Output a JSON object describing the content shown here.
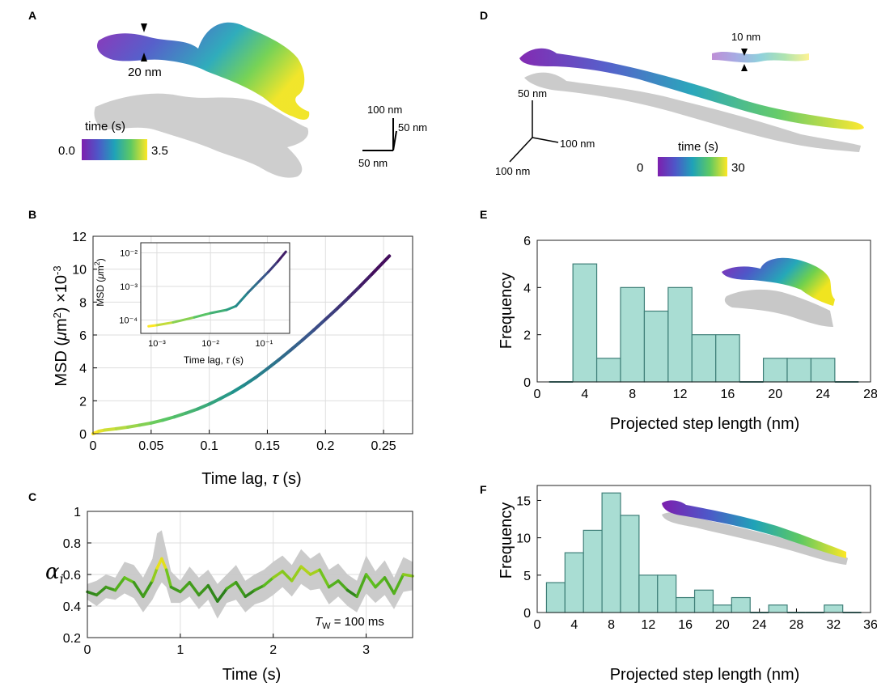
{
  "panel_labels": [
    "A",
    "B",
    "C",
    "D",
    "E",
    "F"
  ],
  "panel_a": {
    "scale_label": "20 nm",
    "colorbar": {
      "title": "time (s)",
      "min_label": "0.0",
      "max_label": "3.5"
    },
    "axes_labels": {
      "vertical": "100 nm",
      "depth": "50 nm",
      "horizontal": "50 nm"
    }
  },
  "panel_d": {
    "scale_label": "10 nm",
    "colorbar": {
      "title": "time (s)",
      "min_label": "0",
      "max_label": "30"
    },
    "axes_labels": {
      "vertical": "50 nm",
      "right": "100 nm",
      "down": "100 nm"
    }
  },
  "colors": {
    "hist_fill": "#a9ddd3",
    "hist_edge": "#3f7f78",
    "trace_gray": "#c8c8c8",
    "alpha_bright": "#f2e21a",
    "alpha_mid": "#8fd01f",
    "alpha_dark": "#1a6b1a",
    "viridis": [
      "#440154",
      "#3b528b",
      "#21918c",
      "#5ec962",
      "#fde725"
    ]
  },
  "chart_data": [
    {
      "id": "B",
      "type": "line",
      "title": "",
      "xlabel": "Time lag, τ (s)",
      "ylabel": "MSD (μm²) ×10⁻³",
      "xlim": [
        0,
        0.275
      ],
      "ylim": [
        0,
        12
      ],
      "grid": true,
      "xticks": [
        0,
        0.05,
        0.1,
        0.15,
        0.2,
        0.25
      ],
      "xtick_labels": [
        "0",
        "0.05",
        "0.1",
        "0.15",
        "0.2",
        "0.25"
      ],
      "yticks": [
        0,
        2,
        4,
        6,
        8,
        10,
        12
      ],
      "ytick_labels": [
        "0",
        "2",
        "4",
        "6",
        "8",
        "10",
        "12"
      ],
      "x": [
        0,
        0.005,
        0.01,
        0.02,
        0.03,
        0.04,
        0.05,
        0.06,
        0.07,
        0.08,
        0.09,
        0.1,
        0.11,
        0.12,
        0.13,
        0.14,
        0.15,
        0.16,
        0.17,
        0.18,
        0.19,
        0.2,
        0.21,
        0.22,
        0.23,
        0.24,
        0.255
      ],
      "y": [
        0,
        0.15,
        0.22,
        0.3,
        0.4,
        0.52,
        0.65,
        0.82,
        1.02,
        1.25,
        1.5,
        1.8,
        2.15,
        2.52,
        2.95,
        3.42,
        3.95,
        4.5,
        5.08,
        5.68,
        6.3,
        6.95,
        7.6,
        8.28,
        8.98,
        9.7,
        10.8
      ]
    },
    {
      "id": "B-inset",
      "type": "line",
      "scale": "loglog",
      "xlabel": "Time lag, τ (s)",
      "ylabel": "MSD (μm²)",
      "xlim": [
        0.0005,
        0.3
      ],
      "ylim": [
        4e-05,
        0.02
      ],
      "xticks": [
        0.001,
        0.01,
        0.1
      ],
      "xtick_labels": [
        "10⁻³",
        "10⁻²",
        "10⁻¹"
      ],
      "yticks": [
        0.0001,
        0.001,
        0.01
      ],
      "ytick_labels": [
        "10⁻⁴",
        "10⁻³",
        "10⁻²"
      ],
      "x": [
        0.0007,
        0.001,
        0.002,
        0.005,
        0.01,
        0.02,
        0.03,
        0.05,
        0.08,
        0.12,
        0.18,
        0.255
      ],
      "y": [
        6.5e-05,
        7e-05,
        8.5e-05,
        0.00012,
        0.00016,
        0.0002,
        0.00026,
        0.00065,
        0.0014,
        0.0027,
        0.0055,
        0.0108
      ]
    },
    {
      "id": "C",
      "type": "line",
      "xlabel": "Time (s)",
      "ylabel": "αᵢ",
      "xlim": [
        0,
        3.5
      ],
      "ylim": [
        0.2,
        1
      ],
      "grid": true,
      "xticks": [
        0,
        1,
        2,
        3
      ],
      "xtick_labels": [
        "0",
        "1",
        "2",
        "3"
      ],
      "yticks": [
        0.2,
        0.4,
        0.6,
        0.8,
        1
      ],
      "ytick_labels": [
        "0.2",
        "0.4",
        "0.6",
        "0.8",
        "1"
      ],
      "annotation": "T_W = 100 ms",
      "annotation_main": "T",
      "annotation_sub": "W",
      "annotation_rest": " = 100 ms",
      "x": [
        0,
        0.1,
        0.2,
        0.3,
        0.4,
        0.5,
        0.6,
        0.7,
        0.75,
        0.8,
        0.85,
        0.9,
        1.0,
        1.1,
        1.2,
        1.3,
        1.4,
        1.5,
        1.6,
        1.7,
        1.8,
        1.9,
        2.0,
        2.1,
        2.2,
        2.3,
        2.4,
        2.5,
        2.6,
        2.7,
        2.8,
        2.9,
        3.0,
        3.1,
        3.2,
        3.3,
        3.4,
        3.5
      ],
      "y": [
        0.49,
        0.47,
        0.52,
        0.5,
        0.58,
        0.55,
        0.46,
        0.56,
        0.64,
        0.7,
        0.63,
        0.52,
        0.49,
        0.55,
        0.47,
        0.53,
        0.43,
        0.51,
        0.55,
        0.46,
        0.5,
        0.53,
        0.58,
        0.62,
        0.56,
        0.65,
        0.6,
        0.63,
        0.52,
        0.56,
        0.5,
        0.46,
        0.6,
        0.52,
        0.58,
        0.48,
        0.6,
        0.59
      ],
      "band_lower": [
        0.44,
        0.4,
        0.45,
        0.44,
        0.48,
        0.45,
        0.36,
        0.44,
        0.5,
        0.55,
        0.52,
        0.42,
        0.42,
        0.46,
        0.38,
        0.44,
        0.32,
        0.42,
        0.44,
        0.36,
        0.41,
        0.43,
        0.47,
        0.52,
        0.46,
        0.54,
        0.5,
        0.51,
        0.41,
        0.46,
        0.4,
        0.36,
        0.48,
        0.42,
        0.47,
        0.38,
        0.49,
        0.5
      ],
      "band_upper": [
        0.54,
        0.56,
        0.6,
        0.58,
        0.68,
        0.66,
        0.58,
        0.7,
        0.86,
        0.88,
        0.75,
        0.62,
        0.56,
        0.65,
        0.58,
        0.63,
        0.54,
        0.6,
        0.66,
        0.56,
        0.6,
        0.63,
        0.68,
        0.72,
        0.66,
        0.76,
        0.7,
        0.74,
        0.63,
        0.67,
        0.6,
        0.56,
        0.72,
        0.62,
        0.69,
        0.58,
        0.71,
        0.68
      ]
    },
    {
      "id": "E",
      "type": "bar",
      "title": "",
      "xlabel": "Projected step length (nm)",
      "ylabel": "Frequency",
      "xlim": [
        0,
        28
      ],
      "ylim": [
        0,
        6
      ],
      "xticks": [
        0,
        4,
        8,
        12,
        16,
        20,
        24,
        28
      ],
      "xtick_labels": [
        "0",
        "4",
        "8",
        "12",
        "16",
        "20",
        "24",
        "28"
      ],
      "yticks": [
        0,
        2,
        4,
        6
      ],
      "ytick_labels": [
        "0",
        "2",
        "4",
        "6"
      ],
      "bin_width": 2,
      "bin_centers": [
        2,
        4,
        6,
        8,
        10,
        12,
        14,
        16,
        18,
        20,
        22,
        24,
        26
      ],
      "values": [
        0,
        5,
        1,
        4,
        3,
        4,
        2,
        2,
        0,
        1,
        1,
        1,
        0
      ]
    },
    {
      "id": "F",
      "type": "bar",
      "title": "",
      "xlabel": "Projected step length (nm)",
      "ylabel": "Frequency",
      "xlim": [
        0,
        36
      ],
      "ylim": [
        0,
        17
      ],
      "xticks": [
        0,
        4,
        8,
        12,
        16,
        20,
        24,
        28,
        32,
        36
      ],
      "xtick_labels": [
        "0",
        "4",
        "8",
        "12",
        "16",
        "20",
        "24",
        "28",
        "32",
        "36"
      ],
      "yticks": [
        0,
        5,
        10,
        15
      ],
      "ytick_labels": [
        "0",
        "5",
        "10",
        "15"
      ],
      "bin_width": 2,
      "bin_centers": [
        2,
        4,
        6,
        8,
        10,
        12,
        14,
        16,
        18,
        20,
        22,
        24,
        26,
        28,
        30,
        32,
        34
      ],
      "values": [
        4,
        8,
        11,
        16,
        13,
        5,
        5,
        2,
        3,
        1,
        2,
        0,
        1,
        0,
        0,
        1,
        0
      ]
    }
  ]
}
